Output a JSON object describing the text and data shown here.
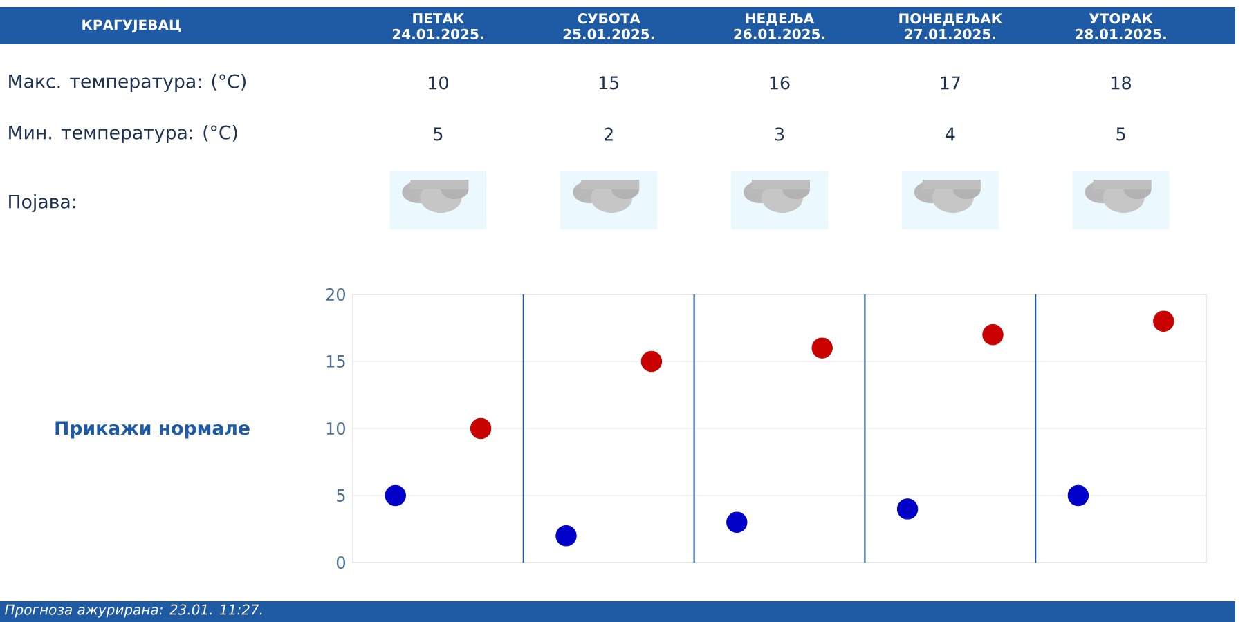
{
  "chart_data": {
    "type": "scatter",
    "title": "КРАГУЈЕВАЦ",
    "categories": [
      null,
      null,
      null,
      null,
      null
    ],
    "series": [
      {
        "color": "#0000c8",
        "values": [
          5,
          2,
          3,
          4,
          5
        ]
      },
      {
        "color": "#c80000",
        "values": [
          10,
          15,
          16,
          17,
          18
        ]
      }
    ],
    "ylim": [
      0,
      20
    ],
    "yticks": [
      0,
      5,
      10,
      15,
      20
    ],
    "grid": "y",
    "data_labels": true,
    "annotations": [
      "Макс. температура: (°C)",
      "Мин. температура: (°C)",
      "Појава:",
      "Прикажи нормале",
      "Прогноза ажурирана:  23.01. 11:27.",
      "ПЕТАК 24.01.2025.",
      "СУБОТА 25.01.2025.",
      "НЕДЕЉА 26.01.2025.",
      "ПОНЕДЕЉАК 27.01.2025.",
      "УТОРАК 28.01.2025."
    ]
  }
}
